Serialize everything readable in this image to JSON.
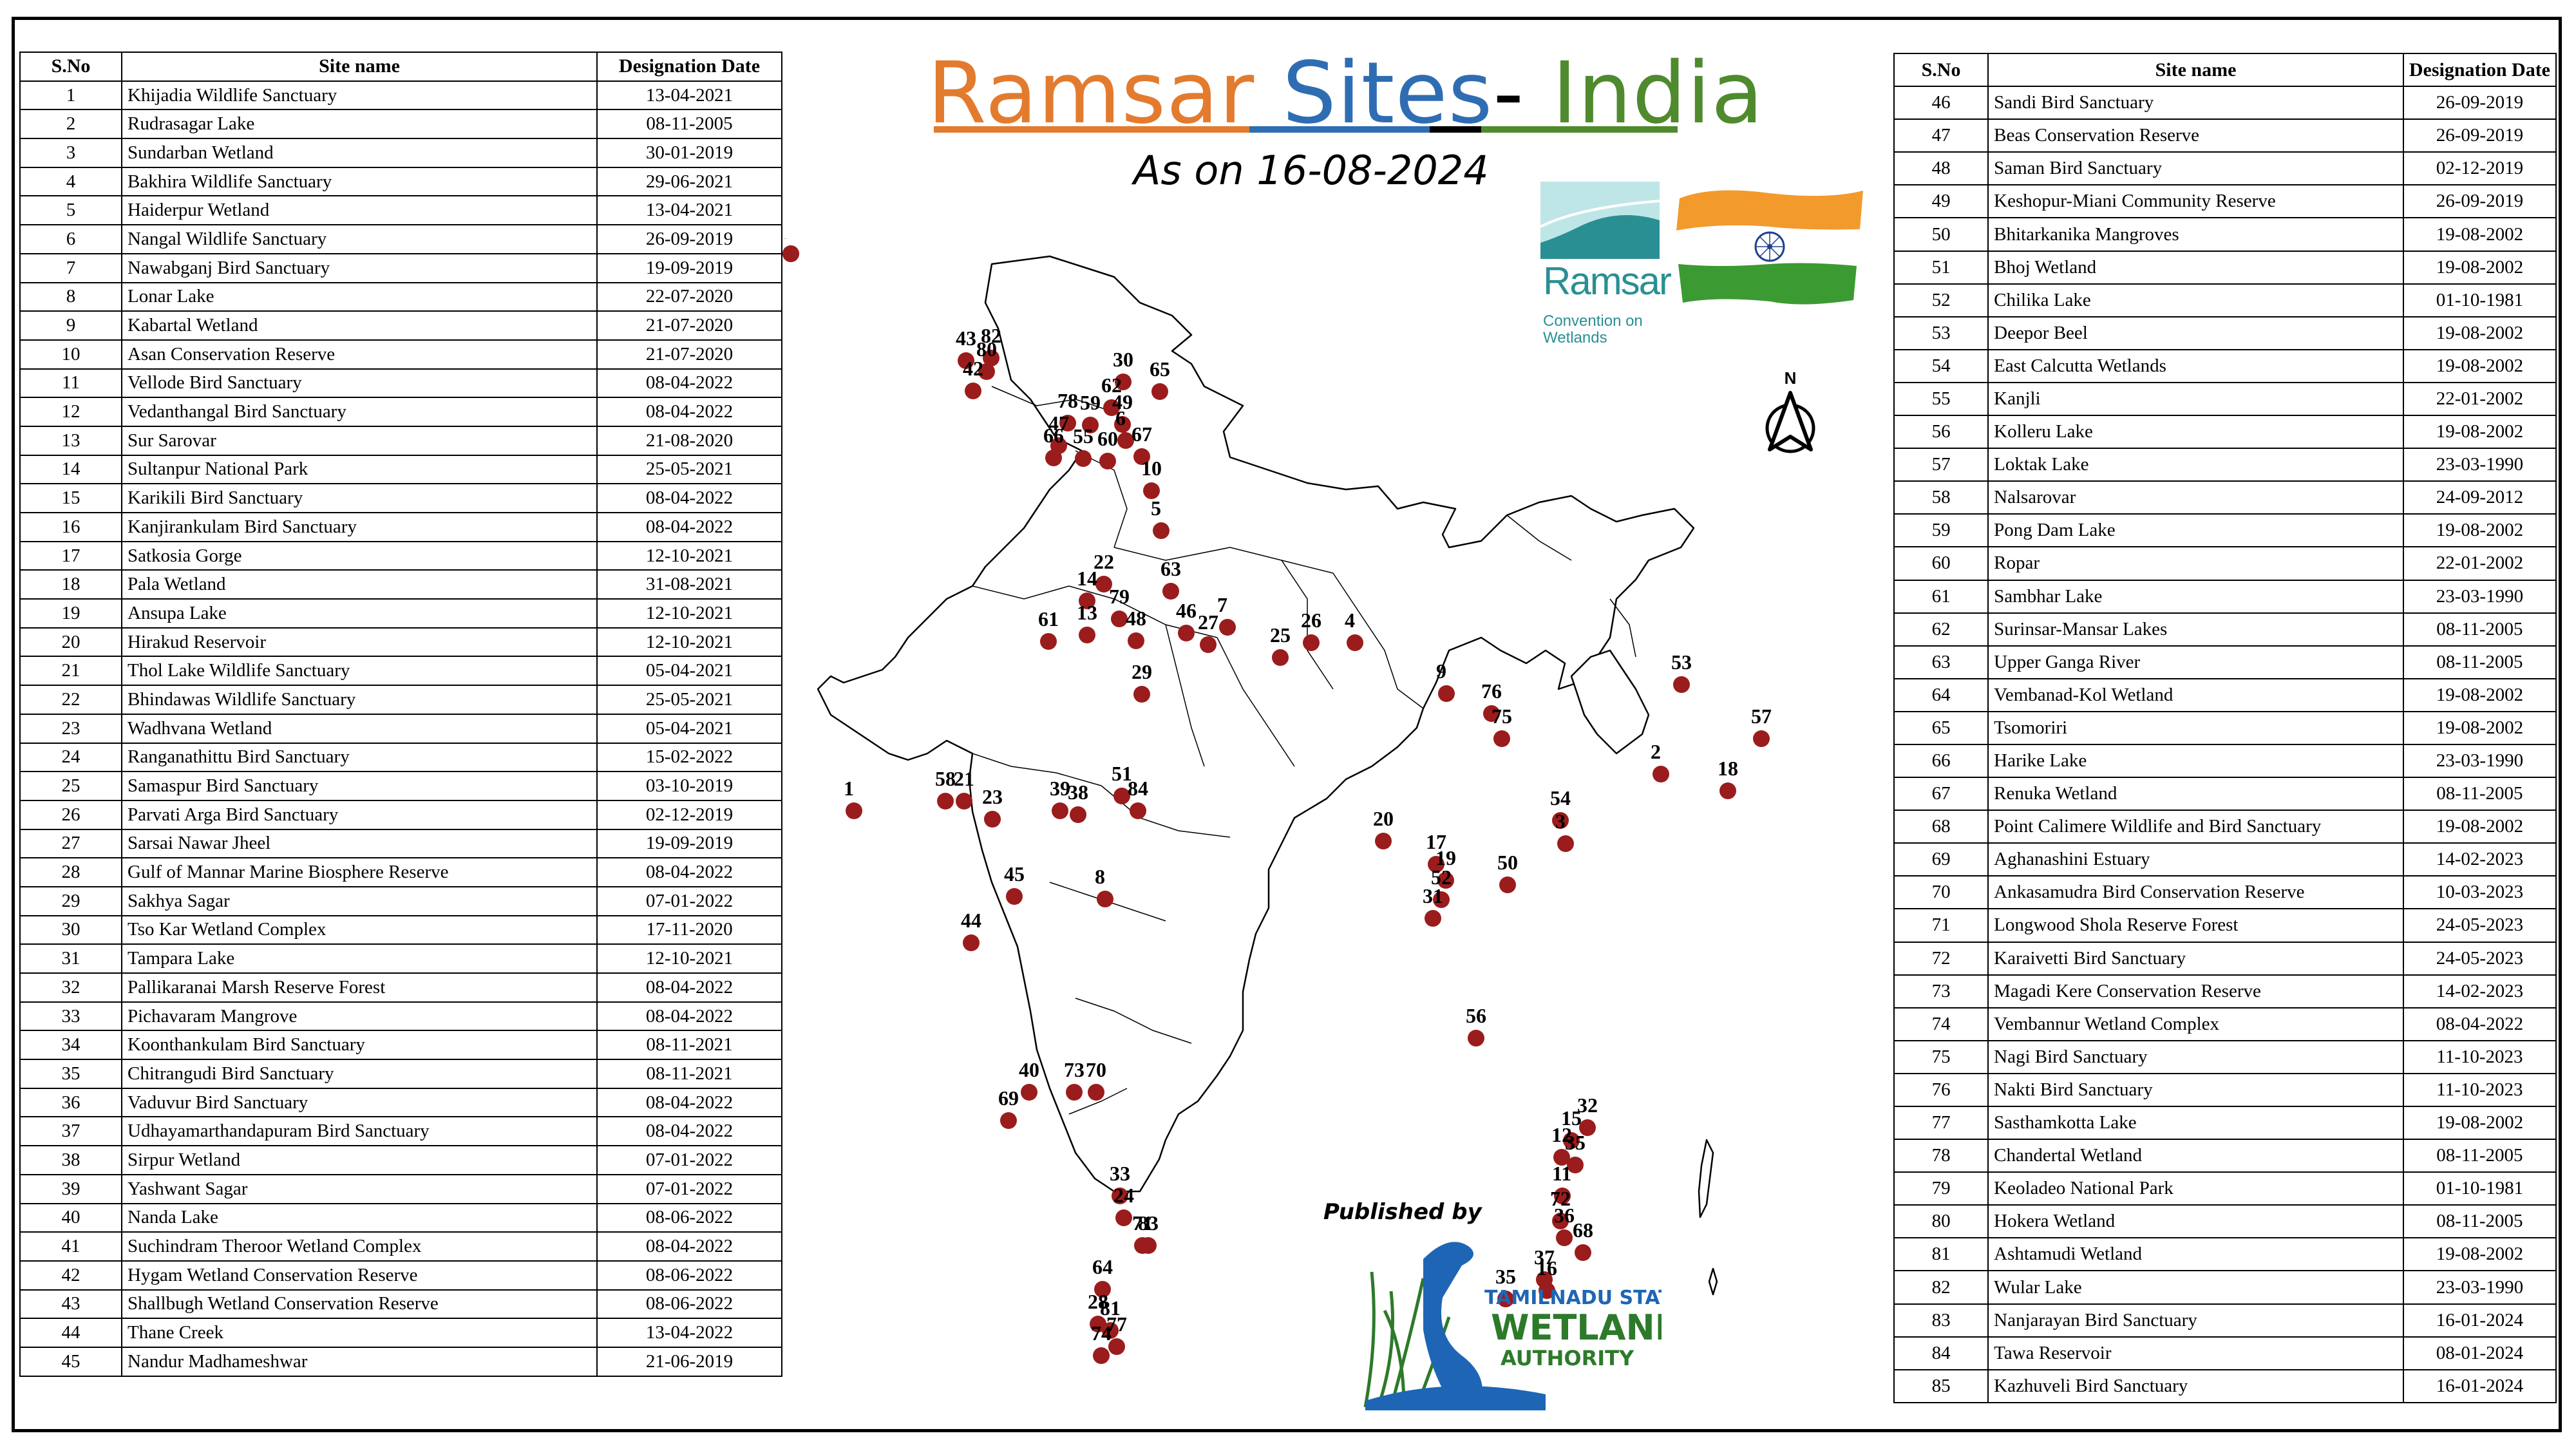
{
  "header": {
    "title_words": [
      "Ramsar",
      "Sites",
      "-",
      "India"
    ],
    "subtitle": "As on 16-08-2024",
    "published_by": "Published by"
  },
  "logos": {
    "ramsar_name": "Ramsar",
    "ramsar_subtitle": "Convention on Wetlands",
    "tnswa_line1": "TAMILNADU STATE",
    "tnswa_line2": "WETLAND",
    "tnswa_line3": "AUTHORITY",
    "north_label": "N"
  },
  "colors": {
    "title_orange": "#e37b2f",
    "title_blue": "#2f6db3",
    "title_green": "#4f8a2e",
    "marker": "#9b1c1c",
    "ramsar_teal": "#2a8f93",
    "flag_saffron": "#f39a2c",
    "flag_green": "#3c9a32",
    "chakra_blue": "#1f3f8f",
    "tnswa_green": "#2d7a2a",
    "tnswa_blue": "#1e66b5"
  },
  "table_left": {
    "columns": [
      "S.No",
      "Site name",
      "Designation Date"
    ],
    "rows": [
      [
        "1",
        "Khijadia Wildlife Sanctuary",
        "13-04-2021"
      ],
      [
        "2",
        "Rudrasagar Lake",
        "08-11-2005"
      ],
      [
        "3",
        "Sundarban Wetland",
        "30-01-2019"
      ],
      [
        "4",
        "Bakhira Wildlife Sanctuary",
        "29-06-2021"
      ],
      [
        "5",
        "Haiderpur Wetland",
        "13-04-2021"
      ],
      [
        "6",
        "Nangal Wildlife Sanctuary",
        "26-09-2019"
      ],
      [
        "7",
        "Nawabganj Bird Sanctuary",
        "19-09-2019"
      ],
      [
        "8",
        " Lonar Lake",
        "22-07-2020"
      ],
      [
        "9",
        "Kabartal Wetland",
        "21-07-2020"
      ],
      [
        "10",
        "Asan Conservation Reserve",
        "21-07-2020"
      ],
      [
        "11",
        "Vellode Bird Sanctuary",
        "08-04-2022"
      ],
      [
        "12",
        "Vedanthangal Bird Sanctuary",
        "08-04-2022"
      ],
      [
        "13",
        "Sur Sarovar",
        "21-08-2020"
      ],
      [
        "14",
        "Sultanpur National Park",
        "25-05-2021"
      ],
      [
        "15",
        "Karikili Bird Sanctuary",
        "08-04-2022"
      ],
      [
        "16",
        "Kanjirankulam Bird Sanctuary",
        "08-04-2022"
      ],
      [
        "17",
        "Satkosia Gorge",
        "12-10-2021"
      ],
      [
        "18",
        "Pala Wetland",
        "31-08-2021"
      ],
      [
        "19",
        "Ansupa Lake",
        "12-10-2021"
      ],
      [
        "20",
        "Hirakud Reservoir",
        "12-10-2021"
      ],
      [
        "21",
        "Thol Lake Wildlife Sanctuary",
        "05-04-2021"
      ],
      [
        "22",
        "Bhindawas Wildlife Sanctuary",
        "25-05-2021"
      ],
      [
        "23",
        "Wadhvana Wetland",
        "05-04-2021"
      ],
      [
        "24",
        "Ranganathittu Bird Sanctuary",
        "15-02-2022"
      ],
      [
        "25",
        "Samaspur Bird Sanctuary",
        "03-10-2019"
      ],
      [
        "26",
        "Parvati Arga Bird Sanctuary",
        "02-12-2019"
      ],
      [
        "27",
        "Sarsai Nawar Jheel",
        "19-09-2019"
      ],
      [
        "28",
        "Gulf of Mannar Marine Biosphere Reserve",
        "08-04-2022"
      ],
      [
        "29",
        "Sakhya Sagar",
        "07-01-2022"
      ],
      [
        "30",
        "Tso Kar Wetland Complex",
        "17-11-2020"
      ],
      [
        "31",
        "Tampara Lake",
        "12-10-2021"
      ],
      [
        "32",
        "Pallikaranai Marsh Reserve Forest",
        "08-04-2022"
      ],
      [
        "33",
        "Pichavaram Mangrove",
        "08-04-2022"
      ],
      [
        "34",
        "Koonthankulam Bird Sanctuary",
        "08-11-2021"
      ],
      [
        "35",
        "Chitrangudi Bird Sanctuary",
        "08-11-2021"
      ],
      [
        "36",
        "Vaduvur Bird Sanctuary",
        "08-04-2022"
      ],
      [
        "37",
        "Udhayamarthandapuram Bird Sanctuary",
        "08-04-2022"
      ],
      [
        "38",
        "Sirpur Wetland",
        "07-01-2022"
      ],
      [
        "39",
        "Yashwant Sagar",
        "07-01-2022"
      ],
      [
        "40",
        "Nanda Lake",
        "08-06-2022"
      ],
      [
        "41",
        "Suchindram Theroor Wetland Complex",
        "08-04-2022"
      ],
      [
        "42",
        "Hygam Wetland Conservation Reserve",
        "08-06-2022"
      ],
      [
        "43",
        "Shallbugh Wetland Conservation Reserve",
        "08-06-2022"
      ],
      [
        "44",
        "Thane Creek",
        "13-04-2022"
      ],
      [
        "45",
        "Nandur Madhameshwar",
        "21-06-2019"
      ]
    ]
  },
  "table_right": {
    "columns": [
      "S.No",
      "Site name",
      "Designation Date"
    ],
    "rows": [
      [
        "46",
        "Sandi Bird Sanctuary",
        "26-09-2019"
      ],
      [
        "47",
        "Beas Conservation Reserve",
        "26-09-2019"
      ],
      [
        "48",
        "Saman Bird Sanctuary",
        "02-12-2019"
      ],
      [
        "49",
        "Keshopur-Miani Community Reserve",
        "26-09-2019"
      ],
      [
        "50",
        "Bhitarkanika Mangroves",
        "19-08-2002"
      ],
      [
        "51",
        "Bhoj Wetland",
        "19-08-2002"
      ],
      [
        "52",
        "Chilika Lake",
        "01-10-1981"
      ],
      [
        "53",
        "Deepor Beel",
        "19-08-2002"
      ],
      [
        "54",
        "East Calcutta Wetlands",
        "19-08-2002"
      ],
      [
        "55",
        "Kanjli",
        "22-01-2002"
      ],
      [
        "56",
        "Kolleru Lake",
        "19-08-2002"
      ],
      [
        "57",
        "Loktak Lake",
        "23-03-1990"
      ],
      [
        "58",
        "Nalsarovar",
        "24-09-2012"
      ],
      [
        "59",
        "Pong Dam Lake",
        "19-08-2002"
      ],
      [
        "60",
        "Ropar",
        "22-01-2002"
      ],
      [
        "61",
        "Sambhar Lake",
        "23-03-1990"
      ],
      [
        "62",
        "Surinsar-Mansar Lakes",
        "08-11-2005"
      ],
      [
        "63",
        "Upper Ganga River",
        "08-11-2005"
      ],
      [
        "64",
        "Vembanad-Kol Wetland",
        "19-08-2002"
      ],
      [
        "65",
        "Tsomoriri",
        "19-08-2002"
      ],
      [
        "66",
        "Harike Lake",
        "23-03-1990"
      ],
      [
        "67",
        "Renuka Wetland",
        "08-11-2005"
      ],
      [
        "68",
        "Point Calimere Wildlife and Bird Sanctuary",
        "19-08-2002"
      ],
      [
        "69",
        "Aghanashini Estuary",
        "14-02-2023"
      ],
      [
        "70",
        "Ankasamudra Bird Conservation Reserve",
        "10-03-2023"
      ],
      [
        "71",
        "Longwood Shola Reserve Forest",
        "24-05-2023"
      ],
      [
        "72",
        "Karaivetti Bird Sanctuary",
        "24-05-2023"
      ],
      [
        "73",
        "Magadi Kere Conservation Reserve",
        "14-02-2023"
      ],
      [
        "74",
        "Vembannur Wetland Complex",
        "08-04-2022"
      ],
      [
        "75",
        "Nagi Bird Sanctuary",
        "11-10-2023"
      ],
      [
        "76",
        "Nakti Bird Sanctuary",
        "11-10-2023"
      ],
      [
        "77",
        "Sasthamkotta Lake",
        "19-08-2002"
      ],
      [
        "78",
        "Chandertal Wetland",
        "08-11-2005"
      ],
      [
        "79",
        "Keoladeo National Park",
        "01-10-1981"
      ],
      [
        "80",
        "Hokera Wetland",
        "08-11-2005"
      ],
      [
        "81",
        "Ashtamudi Wetland",
        "19-08-2002"
      ],
      [
        "82",
        "Wular Lake",
        "23-03-1990"
      ],
      [
        "83",
        "Nanjarayan Bird Sanctuary",
        "16-01-2024"
      ],
      [
        "84",
        "Tawa Reservoir",
        "08-01-2024"
      ],
      [
        "85",
        "Kazhuveli Bird Sanctuary",
        "16-01-2024"
      ]
    ]
  },
  "map_labels": [
    "43",
    "82",
    "80",
    "42",
    "30",
    "65",
    "62",
    "49",
    "78",
    "47",
    "66",
    "59",
    "6",
    "67",
    "55",
    "60",
    "10",
    "5",
    "22",
    "63",
    "14",
    "79",
    "13",
    "61",
    "48",
    "46",
    "7",
    "26",
    "4",
    "27",
    "25",
    "29",
    "9",
    "76",
    "75",
    "53",
    "2",
    "57",
    "18",
    "58",
    "21",
    "1",
    "23",
    "39",
    "38",
    "51",
    "84",
    "54",
    "3",
    "20",
    "17",
    "19",
    "52",
    "31",
    "50",
    "45",
    "8",
    "44",
    "56",
    "40",
    "73",
    "70",
    "69",
    "32",
    "15",
    "12",
    "35",
    "33",
    "24",
    "71",
    "83",
    "11",
    "72",
    "36",
    "68",
    "64",
    "37",
    "16",
    "35",
    "28",
    "81",
    "77",
    "74",
    "34",
    "41"
  ]
}
